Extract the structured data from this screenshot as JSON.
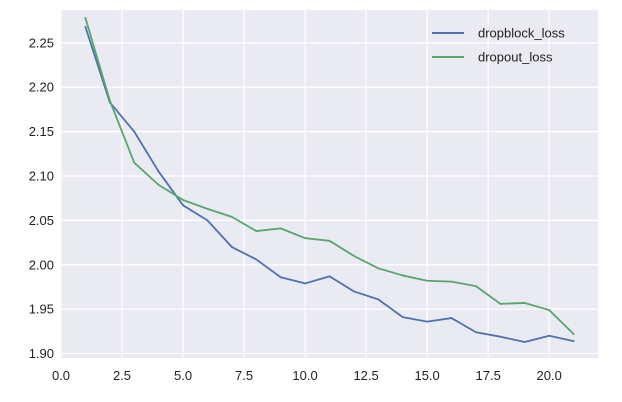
{
  "chart_data": {
    "type": "line",
    "title": "",
    "xlabel": "",
    "ylabel": "",
    "xlim": [
      0,
      22
    ],
    "ylim": [
      1.895,
      2.287
    ],
    "xticks": [
      "0.0",
      "2.5",
      "5.0",
      "7.5",
      "10.0",
      "12.5",
      "15.0",
      "17.5",
      "20.0"
    ],
    "yticks": [
      "1.90",
      "1.95",
      "2.00",
      "2.05",
      "2.10",
      "2.15",
      "2.20",
      "2.25"
    ],
    "grid": true,
    "legend_position": "top-right",
    "background_color": "#eaeaf2",
    "x": [
      1,
      2,
      3,
      4,
      5,
      6,
      7,
      8,
      9,
      10,
      11,
      12,
      13,
      14,
      15,
      16,
      17,
      18,
      19,
      20,
      21
    ],
    "series": [
      {
        "name": "dropblock_loss",
        "color": "#4c72b0",
        "values": [
          2.268,
          2.183,
          2.15,
          2.105,
          2.067,
          2.05,
          2.02,
          2.006,
          1.986,
          1.979,
          1.987,
          1.97,
          1.961,
          1.941,
          1.936,
          1.94,
          1.924,
          1.919,
          1.913,
          1.92,
          1.914
        ]
      },
      {
        "name": "dropout_loss",
        "color": "#55a868",
        "values": [
          2.278,
          2.185,
          2.115,
          2.09,
          2.073,
          2.063,
          2.054,
          2.038,
          2.041,
          2.03,
          2.027,
          2.01,
          1.996,
          1.988,
          1.982,
          1.981,
          1.976,
          1.956,
          1.957,
          1.949,
          1.922
        ]
      }
    ]
  }
}
